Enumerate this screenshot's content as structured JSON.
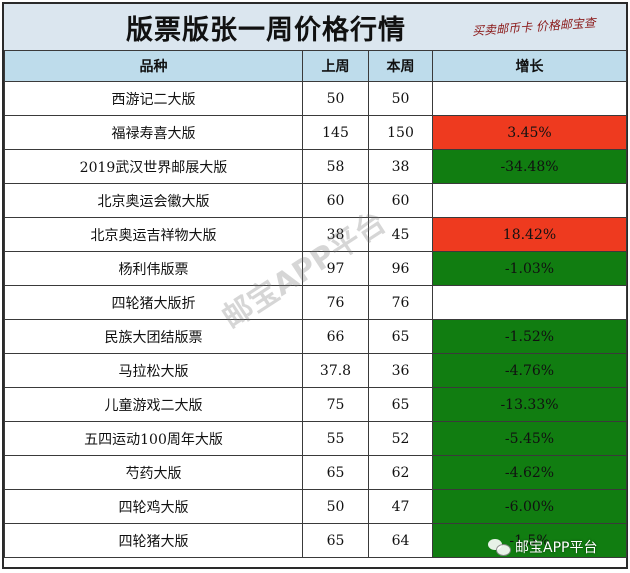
{
  "title": "版票版张一周价格行情",
  "stamp": "买卖邮币卡 价格邮宝查",
  "columns": {
    "name": "品种",
    "last_week": "上周",
    "this_week": "本周",
    "change": "增长"
  },
  "rows": [
    {
      "name": "西游记二大版",
      "last_week": "50",
      "this_week": "50",
      "change": "",
      "trend": "flat"
    },
    {
      "name": "福禄寿喜大版",
      "last_week": "145",
      "this_week": "150",
      "change": "3.45%",
      "trend": "up"
    },
    {
      "name": "2019武汉世界邮展大版",
      "last_week": "58",
      "this_week": "38",
      "change": "-34.48%",
      "trend": "down"
    },
    {
      "name": "北京奥运会徽大版",
      "last_week": "60",
      "this_week": "60",
      "change": "",
      "trend": "flat"
    },
    {
      "name": "北京奥运吉祥物大版",
      "last_week": "38",
      "this_week": "45",
      "change": "18.42%",
      "trend": "up"
    },
    {
      "name": "杨利伟版票",
      "last_week": "97",
      "this_week": "96",
      "change": "-1.03%",
      "trend": "down"
    },
    {
      "name": "四轮猪大版折",
      "last_week": "76",
      "this_week": "76",
      "change": "",
      "trend": "flat"
    },
    {
      "name": "民族大团结版票",
      "last_week": "66",
      "this_week": "65",
      "change": "-1.52%",
      "trend": "down"
    },
    {
      "name": "马拉松大版",
      "last_week": "37.8",
      "this_week": "36",
      "change": "-4.76%",
      "trend": "down"
    },
    {
      "name": "儿童游戏二大版",
      "last_week": "75",
      "this_week": "65",
      "change": "-13.33%",
      "trend": "down"
    },
    {
      "name": "五四运动100周年大版",
      "last_week": "55",
      "this_week": "52",
      "change": "-5.45%",
      "trend": "down"
    },
    {
      "name": "芍药大版",
      "last_week": "65",
      "this_week": "62",
      "change": "-4.62%",
      "trend": "down"
    },
    {
      "name": "四轮鸡大版",
      "last_week": "50",
      "this_week": "47",
      "change": "-6.00%",
      "trend": "down"
    },
    {
      "name": "四轮猪大版",
      "last_week": "65",
      "this_week": "64",
      "change": "-1.5%",
      "trend": "down"
    }
  ],
  "colors": {
    "up": "#ee3a1f",
    "down": "#117d11",
    "header": "#bedceb",
    "title_bg": "#dbe6ef"
  },
  "watermark": "邮宝APP平台",
  "wechat_label": "邮宝APP平台"
}
